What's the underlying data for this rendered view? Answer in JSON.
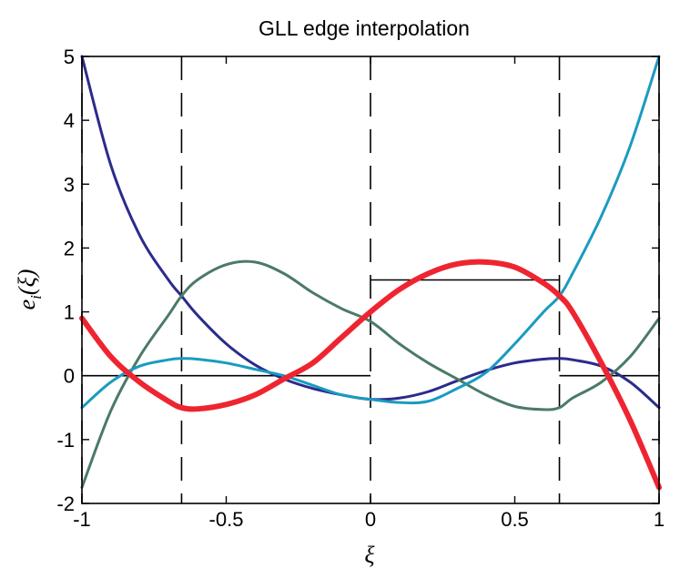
{
  "chart_data": {
    "type": "line",
    "title": "GLL edge interpolation",
    "xlabel": "ξ",
    "ylabel": "e",
    "ylabel_sub": "i",
    "ylabel_arg": "(ξ)",
    "xlim": [
      -1,
      1
    ],
    "ylim": [
      -2,
      5
    ],
    "grid": false,
    "legend": "none",
    "x_ticks": [
      -1,
      -0.5,
      0,
      0.5,
      1
    ],
    "x_tick_labels": [
      "-1",
      "-0.5",
      "0",
      "0.5",
      "1"
    ],
    "y_ticks": [
      -2,
      -1,
      0,
      1,
      2,
      3,
      4,
      5
    ],
    "y_tick_labels": [
      "-2",
      "-1",
      "0",
      "1",
      "2",
      "3",
      "4",
      "5"
    ],
    "nodes": [
      -1,
      -0.6547,
      0,
      0.6547,
      1
    ],
    "series": [
      {
        "color": "#2b2b8c",
        "x": [
          -1,
          -0.9,
          -0.8,
          -0.7,
          -0.6547,
          -0.6,
          -0.5,
          -0.4,
          -0.3,
          -0.2,
          -0.1,
          0,
          0.1,
          0.2,
          0.3,
          0.4,
          0.5,
          0.6,
          0.6547,
          0.7,
          0.8,
          0.9,
          1
        ],
        "y": [
          5.0,
          3.3,
          2.2,
          1.5,
          1.25,
          0.95,
          0.5,
          0.17,
          -0.05,
          -0.2,
          -0.3,
          -0.37,
          -0.35,
          -0.25,
          -0.08,
          0.08,
          0.2,
          0.26,
          0.27,
          0.25,
          0.15,
          -0.1,
          -0.5
        ]
      },
      {
        "color": "#4b7a66",
        "x": [
          -1,
          -0.9,
          -0.8,
          -0.7,
          -0.6547,
          -0.6,
          -0.5,
          -0.4,
          -0.3,
          -0.2,
          -0.1,
          0,
          0.1,
          0.2,
          0.3,
          0.4,
          0.5,
          0.6,
          0.6547,
          0.7,
          0.8,
          0.9,
          1
        ],
        "y": [
          -1.75,
          -0.55,
          0.3,
          0.95,
          1.25,
          1.5,
          1.74,
          1.78,
          1.6,
          1.3,
          1.05,
          0.85,
          0.5,
          0.2,
          -0.05,
          -0.3,
          -0.48,
          -0.53,
          -0.5,
          -0.35,
          -0.1,
          0.3,
          0.9
        ]
      },
      {
        "color": "#1a9bc0",
        "x": [
          -1,
          -0.9,
          -0.8,
          -0.7,
          -0.6547,
          -0.6,
          -0.5,
          -0.4,
          -0.3,
          -0.2,
          -0.1,
          0,
          0.1,
          0.2,
          0.3,
          0.4,
          0.5,
          0.6,
          0.6547,
          0.7,
          0.8,
          0.9,
          1
        ],
        "y": [
          -0.5,
          -0.1,
          0.15,
          0.25,
          0.27,
          0.26,
          0.2,
          0.1,
          0.0,
          -0.15,
          -0.3,
          -0.37,
          -0.42,
          -0.4,
          -0.2,
          0.05,
          0.5,
          1.0,
          1.25,
          1.6,
          2.5,
          3.6,
          5.0
        ]
      },
      {
        "color": "#ee2530",
        "width": 6,
        "x": [
          -1,
          -0.9,
          -0.8,
          -0.7,
          -0.6547,
          -0.6,
          -0.5,
          -0.4,
          -0.3,
          -0.2,
          -0.1,
          0,
          0.1,
          0.2,
          0.3,
          0.4,
          0.5,
          0.6,
          0.6547,
          0.7,
          0.8,
          0.9,
          1
        ],
        "y": [
          0.9,
          0.3,
          -0.1,
          -0.4,
          -0.5,
          -0.52,
          -0.45,
          -0.3,
          -0.05,
          0.2,
          0.6,
          1.0,
          1.35,
          1.6,
          1.75,
          1.78,
          1.7,
          1.45,
          1.25,
          1.0,
          0.2,
          -0.7,
          -1.75
        ]
      }
    ],
    "segments": [
      {
        "x": [
          -1,
          0
        ],
        "y": [
          0,
          0
        ]
      },
      {
        "x": [
          0,
          0.6547
        ],
        "y": [
          1.5,
          1.5
        ]
      },
      {
        "x": [
          0.6547,
          1
        ],
        "y": [
          0,
          0
        ]
      }
    ]
  }
}
